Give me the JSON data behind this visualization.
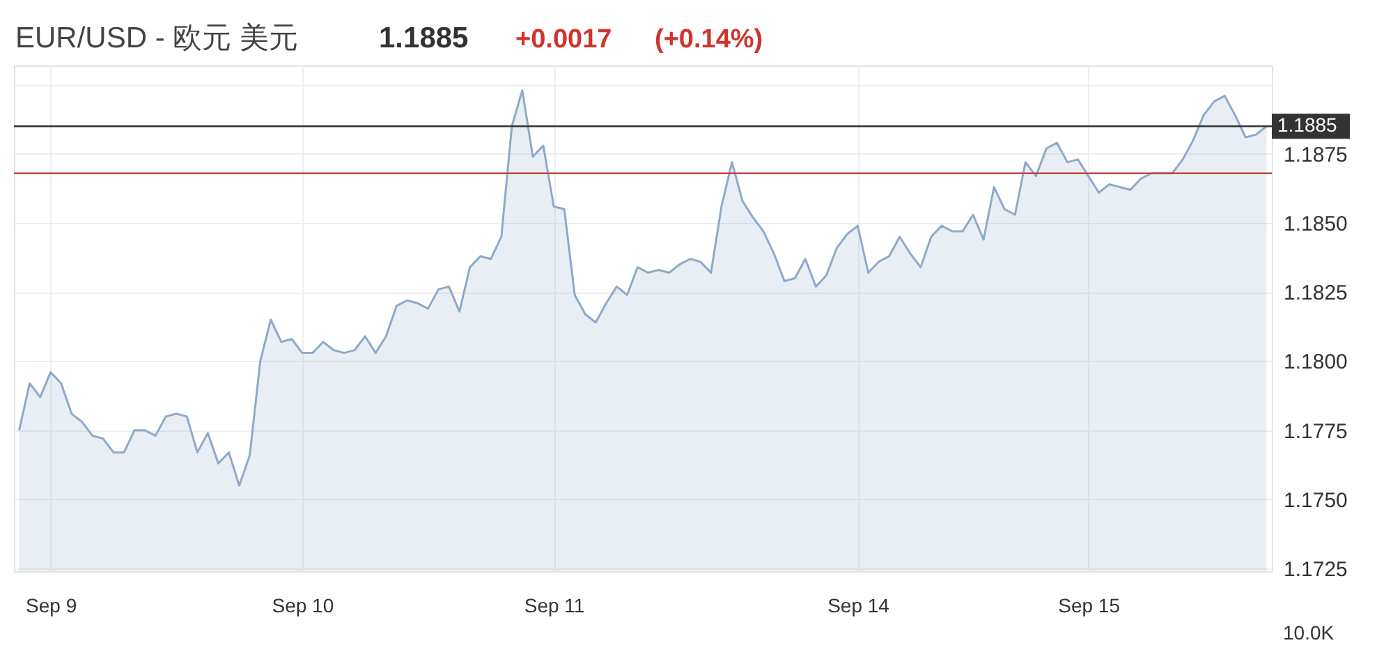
{
  "chart_data": {
    "type": "area",
    "title": "EUR/USD - 欧元 美元",
    "annotations": [
      "1.1885",
      "+0.0017",
      "(+0.14%)",
      "10.0K"
    ],
    "categories": [
      null,
      null,
      null,
      "Sep 9",
      null,
      null,
      null,
      null,
      null,
      null,
      null,
      null,
      null,
      null,
      null,
      null,
      null,
      null,
      null,
      null,
      null,
      null,
      null,
      null,
      null,
      null,
      null,
      "Sep 10",
      null,
      null,
      null,
      null,
      null,
      null,
      null,
      null,
      null,
      null,
      null,
      null,
      null,
      null,
      null,
      null,
      null,
      null,
      null,
      null,
      null,
      null,
      null,
      "Sep 11",
      null,
      null,
      null,
      null,
      null,
      null,
      null,
      null,
      null,
      null,
      null,
      null,
      null,
      null,
      null,
      null,
      null,
      null,
      null,
      null,
      null,
      null,
      null,
      null,
      null,
      null,
      null,
      null,
      "Sep 14",
      null,
      null,
      null,
      null,
      null,
      null,
      null,
      null,
      null,
      null,
      null,
      null,
      null,
      null,
      null,
      null,
      null,
      null,
      null,
      null,
      null,
      "Sep 15",
      null,
      null,
      null,
      null,
      null,
      null,
      null,
      null,
      null,
      null,
      null,
      null,
      null,
      null,
      null,
      null,
      null
    ],
    "series": [
      {
        "color": "#8fa9c9",
        "values": [
          1.1775,
          1.1792,
          1.1787,
          1.1796,
          1.1792,
          1.1781,
          1.1778,
          1.1773,
          1.1772,
          1.1767,
          1.1767,
          1.1775,
          1.1775,
          1.1773,
          1.178,
          1.1781,
          1.178,
          1.1767,
          1.1774,
          1.1763,
          1.1767,
          1.1755,
          1.1766,
          1.18,
          1.1815,
          1.1807,
          1.1808,
          1.1803,
          1.1803,
          1.1807,
          1.1804,
          1.1803,
          1.1804,
          1.1809,
          1.1803,
          1.1809,
          1.182,
          1.1822,
          1.1821,
          1.1819,
          1.1826,
          1.1827,
          1.1818,
          1.1834,
          1.1838,
          1.1837,
          1.1845,
          1.1885,
          1.1898,
          1.1874,
          1.1878,
          1.1856,
          1.1855,
          1.1824,
          1.1817,
          1.1814,
          1.1821,
          1.1827,
          1.1824,
          1.1834,
          1.1832,
          1.1833,
          1.1832,
          1.1835,
          1.1837,
          1.1836,
          1.1832,
          1.1856,
          1.1872,
          1.1858,
          1.1852,
          1.1847,
          1.1839,
          1.1829,
          1.183,
          1.1837,
          1.1827,
          1.1831,
          1.1841,
          1.1846,
          1.1849,
          1.1832,
          1.1836,
          1.1838,
          1.1845,
          1.1839,
          1.1834,
          1.1845,
          1.1849,
          1.1847,
          1.1847,
          1.1853,
          1.1844,
          1.1863,
          1.1855,
          1.1853,
          1.1872,
          1.1867,
          1.1877,
          1.1879,
          1.1872,
          1.1873,
          1.1867,
          1.1861,
          1.1864,
          1.1863,
          1.1862,
          1.1866,
          1.1868,
          1.1868,
          1.1868,
          1.1873,
          1.188,
          1.1889,
          1.1894,
          1.1896,
          1.1889,
          1.1881,
          1.1882,
          1.1885
        ]
      }
    ],
    "ylim": [
      1.1724,
      1.1907
    ],
    "yticks": [
      1.1725,
      {
        "value": 1.175,
        "label": "1.1750"
      },
      1.1775,
      {
        "value": 1.18,
        "label": "1.1800"
      },
      1.1825,
      {
        "value": 1.185,
        "label": "1.1850"
      },
      1.1875,
      {
        "value": 1.19,
        "label": null
      }
    ],
    "ref_lines": [
      {
        "axis": "y",
        "value": 1.1885,
        "label": "1.1885",
        "color": "#333333"
      },
      {
        "axis": "y",
        "value": 1.1868,
        "color": "#c8453c"
      }
    ],
    "grid": true
  }
}
